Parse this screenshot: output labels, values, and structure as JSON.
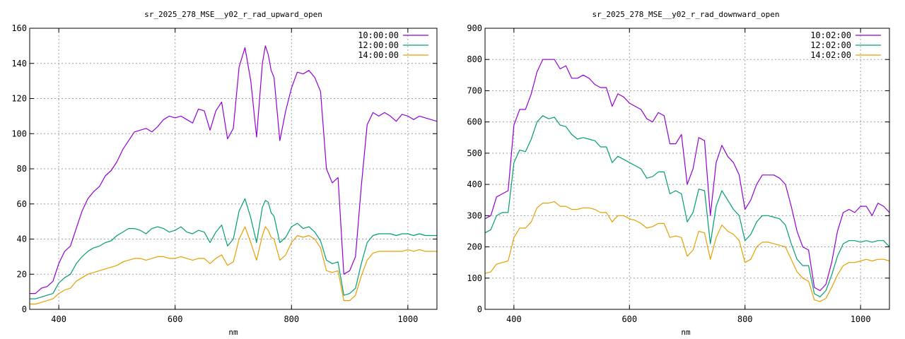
{
  "chart_data": [
    {
      "type": "line",
      "title": "sr_2025_278_MSE__y02_r_rad_upward_open",
      "xlabel": "nm",
      "ylabel": "",
      "xlim": [
        350,
        1050
      ],
      "ylim": [
        0,
        160
      ],
      "xticks": [
        400,
        600,
        800,
        1000
      ],
      "yticks": [
        0,
        20,
        40,
        60,
        80,
        100,
        120,
        140,
        160
      ],
      "grid": true,
      "legend_position": "top-right",
      "series": [
        {
          "name": "10:00:00",
          "color": "#9400d3",
          "x": [
            350,
            360,
            370,
            380,
            390,
            400,
            410,
            420,
            430,
            440,
            450,
            460,
            470,
            480,
            490,
            500,
            510,
            520,
            530,
            540,
            550,
            560,
            570,
            580,
            590,
            600,
            610,
            620,
            630,
            640,
            650,
            660,
            670,
            680,
            690,
            700,
            710,
            720,
            730,
            740,
            750,
            755,
            760,
            765,
            770,
            780,
            790,
            800,
            810,
            820,
            830,
            840,
            850,
            860,
            870,
            880,
            890,
            900,
            910,
            920,
            930,
            940,
            950,
            960,
            970,
            980,
            990,
            1000,
            1010,
            1020,
            1030,
            1040,
            1050
          ],
          "values": [
            9,
            9,
            12,
            13,
            16,
            26,
            33,
            36,
            46,
            56,
            63,
            67,
            70,
            76,
            79,
            84,
            91,
            96,
            101,
            102,
            103,
            101,
            104,
            108,
            110,
            109,
            110,
            108,
            106,
            114,
            113,
            102,
            113,
            118,
            97,
            103,
            138,
            149,
            130,
            98,
            140,
            150,
            145,
            136,
            132,
            96,
            113,
            126,
            135,
            134,
            136,
            132,
            124,
            80,
            72,
            75,
            20,
            22,
            30,
            70,
            105,
            112,
            110,
            112,
            110,
            107,
            111,
            110,
            108,
            110,
            109,
            108,
            107
          ]
        },
        {
          "name": "12:00:00",
          "color": "#009e73",
          "x": [
            350,
            360,
            370,
            380,
            390,
            400,
            410,
            420,
            430,
            440,
            450,
            460,
            470,
            480,
            490,
            500,
            510,
            520,
            530,
            540,
            550,
            560,
            570,
            580,
            590,
            600,
            610,
            620,
            630,
            640,
            650,
            660,
            670,
            680,
            690,
            700,
            710,
            720,
            730,
            740,
            750,
            755,
            760,
            765,
            770,
            780,
            790,
            800,
            810,
            820,
            830,
            840,
            850,
            860,
            870,
            880,
            890,
            900,
            910,
            920,
            930,
            940,
            950,
            960,
            970,
            980,
            990,
            1000,
            1010,
            1020,
            1030,
            1040,
            1050
          ],
          "values": [
            6,
            6,
            7,
            8,
            9,
            15,
            18,
            20,
            26,
            30,
            33,
            35,
            36,
            38,
            39,
            42,
            44,
            46,
            46,
            45,
            43,
            46,
            47,
            46,
            44,
            45,
            47,
            44,
            43,
            45,
            44,
            38,
            44,
            48,
            36,
            40,
            56,
            63,
            52,
            38,
            58,
            62,
            61,
            55,
            53,
            38,
            41,
            47,
            49,
            46,
            47,
            44,
            39,
            28,
            26,
            27,
            8,
            9,
            12,
            26,
            38,
            42,
            43,
            43,
            43,
            42,
            43,
            43,
            42,
            43,
            42,
            42,
            42
          ]
        },
        {
          "name": "14:00:00",
          "color": "#e69f00",
          "x": [
            350,
            360,
            370,
            380,
            390,
            400,
            410,
            420,
            430,
            440,
            450,
            460,
            470,
            480,
            490,
            500,
            510,
            520,
            530,
            540,
            550,
            560,
            570,
            580,
            590,
            600,
            610,
            620,
            630,
            640,
            650,
            660,
            670,
            680,
            690,
            700,
            710,
            720,
            730,
            740,
            750,
            755,
            760,
            765,
            770,
            780,
            790,
            800,
            810,
            820,
            830,
            840,
            850,
            860,
            870,
            880,
            890,
            900,
            910,
            920,
            930,
            940,
            950,
            960,
            970,
            980,
            990,
            1000,
            1010,
            1020,
            1030,
            1040,
            1050
          ],
          "values": [
            3,
            3,
            4,
            5,
            6,
            9,
            11,
            12,
            16,
            18,
            20,
            21,
            22,
            23,
            24,
            25,
            27,
            28,
            29,
            29,
            28,
            29,
            30,
            30,
            29,
            29,
            30,
            29,
            28,
            29,
            29,
            26,
            29,
            31,
            25,
            27,
            40,
            47,
            38,
            28,
            42,
            47,
            45,
            41,
            40,
            28,
            31,
            38,
            42,
            41,
            42,
            40,
            35,
            22,
            21,
            22,
            5,
            5,
            8,
            19,
            28,
            32,
            33,
            33,
            33,
            33,
            33,
            34,
            33,
            34,
            33,
            33,
            33
          ]
        }
      ]
    },
    {
      "type": "line",
      "title": "sr_2025_278_MSE__y02_r_rad_downward_open",
      "xlabel": "nm",
      "ylabel": "",
      "xlim": [
        350,
        1050
      ],
      "ylim": [
        0,
        900
      ],
      "xticks": [
        400,
        600,
        800,
        1000
      ],
      "yticks": [
        0,
        100,
        200,
        300,
        400,
        500,
        600,
        700,
        800,
        900
      ],
      "grid": true,
      "legend_position": "top-right",
      "series": [
        {
          "name": "10:02:00",
          "color": "#9400d3",
          "x": [
            350,
            360,
            370,
            380,
            390,
            400,
            410,
            420,
            430,
            440,
            450,
            460,
            470,
            480,
            490,
            500,
            510,
            520,
            530,
            540,
            550,
            560,
            570,
            580,
            590,
            600,
            610,
            620,
            630,
            640,
            650,
            660,
            670,
            680,
            690,
            700,
            710,
            720,
            730,
            740,
            750,
            760,
            770,
            780,
            790,
            800,
            810,
            820,
            830,
            840,
            850,
            860,
            870,
            880,
            890,
            900,
            910,
            920,
            930,
            940,
            950,
            960,
            970,
            980,
            990,
            1000,
            1010,
            1020,
            1030,
            1040,
            1050
          ],
          "values": [
            290,
            300,
            360,
            370,
            380,
            590,
            640,
            640,
            690,
            760,
            800,
            800,
            800,
            770,
            780,
            740,
            740,
            750,
            740,
            720,
            710,
            710,
            650,
            690,
            680,
            660,
            650,
            640,
            610,
            600,
            630,
            620,
            530,
            530,
            560,
            400,
            450,
            550,
            540,
            300,
            470,
            525,
            490,
            470,
            430,
            320,
            350,
            400,
            430,
            430,
            430,
            420,
            400,
            330,
            250,
            200,
            190,
            70,
            60,
            80,
            150,
            250,
            310,
            320,
            310,
            330,
            330,
            300,
            340,
            330,
            310
          ]
        },
        {
          "name": "12:02:00",
          "color": "#009e73",
          "x": [
            350,
            360,
            370,
            380,
            390,
            400,
            410,
            420,
            430,
            440,
            450,
            460,
            470,
            480,
            490,
            500,
            510,
            520,
            530,
            540,
            550,
            560,
            570,
            580,
            590,
            600,
            610,
            620,
            630,
            640,
            650,
            660,
            670,
            680,
            690,
            700,
            710,
            720,
            730,
            740,
            750,
            760,
            770,
            780,
            790,
            800,
            810,
            820,
            830,
            840,
            850,
            860,
            870,
            880,
            890,
            900,
            910,
            920,
            930,
            940,
            950,
            960,
            970,
            980,
            990,
            1000,
            1010,
            1020,
            1030,
            1040,
            1050
          ],
          "values": [
            245,
            255,
            300,
            310,
            310,
            470,
            510,
            505,
            545,
            600,
            620,
            610,
            615,
            590,
            585,
            560,
            545,
            550,
            545,
            540,
            520,
            520,
            470,
            490,
            480,
            470,
            460,
            450,
            420,
            425,
            440,
            440,
            370,
            380,
            370,
            280,
            310,
            385,
            380,
            210,
            330,
            380,
            350,
            320,
            300,
            220,
            240,
            280,
            300,
            300,
            295,
            290,
            270,
            210,
            160,
            140,
            140,
            50,
            40,
            60,
            110,
            170,
            210,
            220,
            220,
            215,
            220,
            215,
            220,
            220,
            200
          ]
        },
        {
          "name": "14:02:00",
          "color": "#e69f00",
          "x": [
            350,
            360,
            370,
            380,
            390,
            400,
            410,
            420,
            430,
            440,
            450,
            460,
            470,
            480,
            490,
            500,
            510,
            520,
            530,
            540,
            550,
            560,
            570,
            580,
            590,
            600,
            610,
            620,
            630,
            640,
            650,
            660,
            670,
            680,
            690,
            700,
            710,
            720,
            730,
            740,
            750,
            760,
            770,
            780,
            790,
            800,
            810,
            820,
            830,
            840,
            850,
            860,
            870,
            880,
            890,
            900,
            910,
            920,
            930,
            940,
            950,
            960,
            970,
            980,
            990,
            1000,
            1010,
            1020,
            1030,
            1040,
            1050
          ],
          "values": [
            115,
            120,
            145,
            150,
            155,
            230,
            260,
            260,
            280,
            325,
            340,
            340,
            345,
            330,
            330,
            320,
            320,
            325,
            325,
            320,
            310,
            310,
            280,
            300,
            300,
            290,
            285,
            275,
            260,
            265,
            275,
            275,
            230,
            235,
            230,
            170,
            190,
            250,
            245,
            160,
            230,
            270,
            250,
            240,
            220,
            150,
            160,
            200,
            215,
            215,
            210,
            205,
            200,
            160,
            120,
            100,
            90,
            30,
            25,
            35,
            70,
            110,
            140,
            150,
            150,
            155,
            160,
            155,
            160,
            160,
            155
          ]
        }
      ]
    }
  ]
}
